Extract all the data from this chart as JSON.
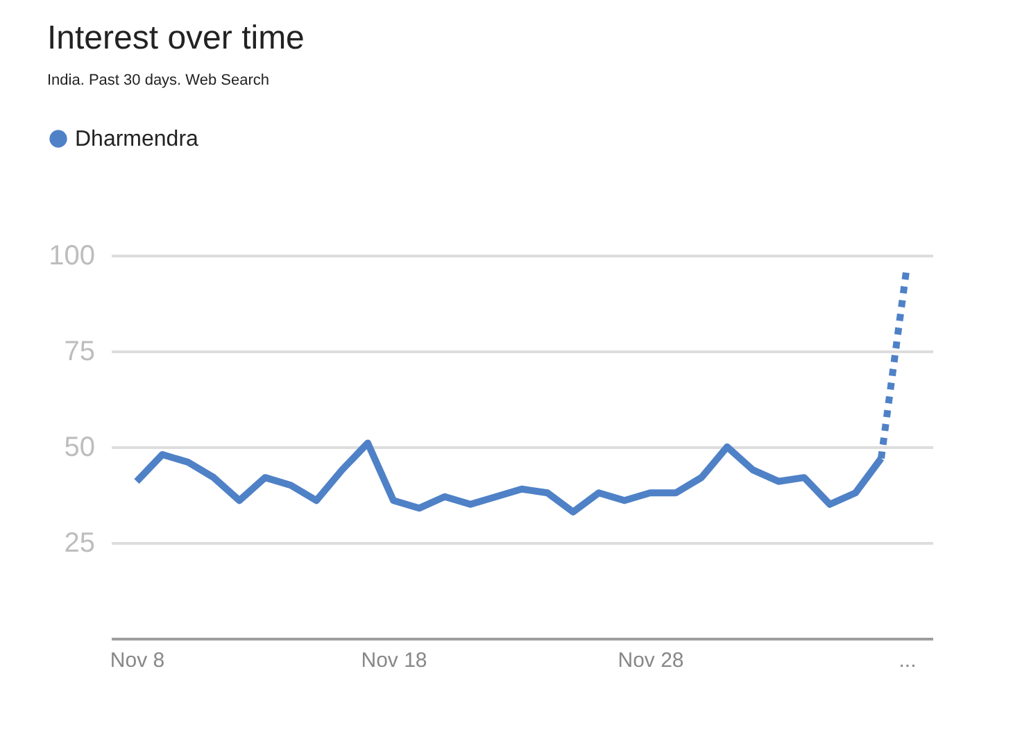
{
  "chart_data": {
    "type": "line",
    "title": "Interest over time",
    "subtitle": "India. Past 30 days. Web Search",
    "x": [
      "--11-08",
      "--11-09",
      "--11-10",
      "--11-11",
      "--11-12",
      "--11-13",
      "--11-14",
      "--11-15",
      "--11-16",
      "--11-17",
      "--11-18",
      "--11-19",
      "--11-20",
      "--11-21",
      "--11-22",
      "--11-23",
      "--11-24",
      "--11-25",
      "--11-26",
      "--11-27",
      "--11-28",
      "--11-29",
      "--11-30",
      "--12-01",
      "--12-02",
      "--12-03",
      "--12-04",
      "--12-05",
      "--12-06",
      "--12-07"
    ],
    "series": [
      {
        "name": "Dharmendra",
        "color": "#4f81c7",
        "values": [
          41,
          48,
          46,
          42,
          36,
          42,
          40,
          36,
          44,
          51,
          36,
          34,
          37,
          35,
          37,
          39,
          38,
          33,
          38,
          36,
          38,
          38,
          42,
          50,
          44,
          41,
          42,
          35,
          38,
          47
        ]
      },
      {
        "color": "#4f81c7",
        "x": [
          "--12-07",
          "--12-08"
        ],
        "values": [
          47,
          97
        ],
        "line_style": "dotted"
      }
    ],
    "xlim": [
      "--11-07",
      "--12-09"
    ],
    "xticks": [
      {
        "value": "--11-08",
        "label": "Nov 8"
      },
      {
        "value": "--11-18",
        "label": "Nov 18"
      },
      {
        "value": "--11-28",
        "label": "Nov 28"
      },
      {
        "value": "--12-08",
        "label": "..."
      }
    ],
    "ylim": [
      0,
      100
    ],
    "yticks": [
      25,
      50,
      75,
      100
    ],
    "grid": "y",
    "legend": "top left",
    "line_style": "solid",
    "marker": "none"
  }
}
